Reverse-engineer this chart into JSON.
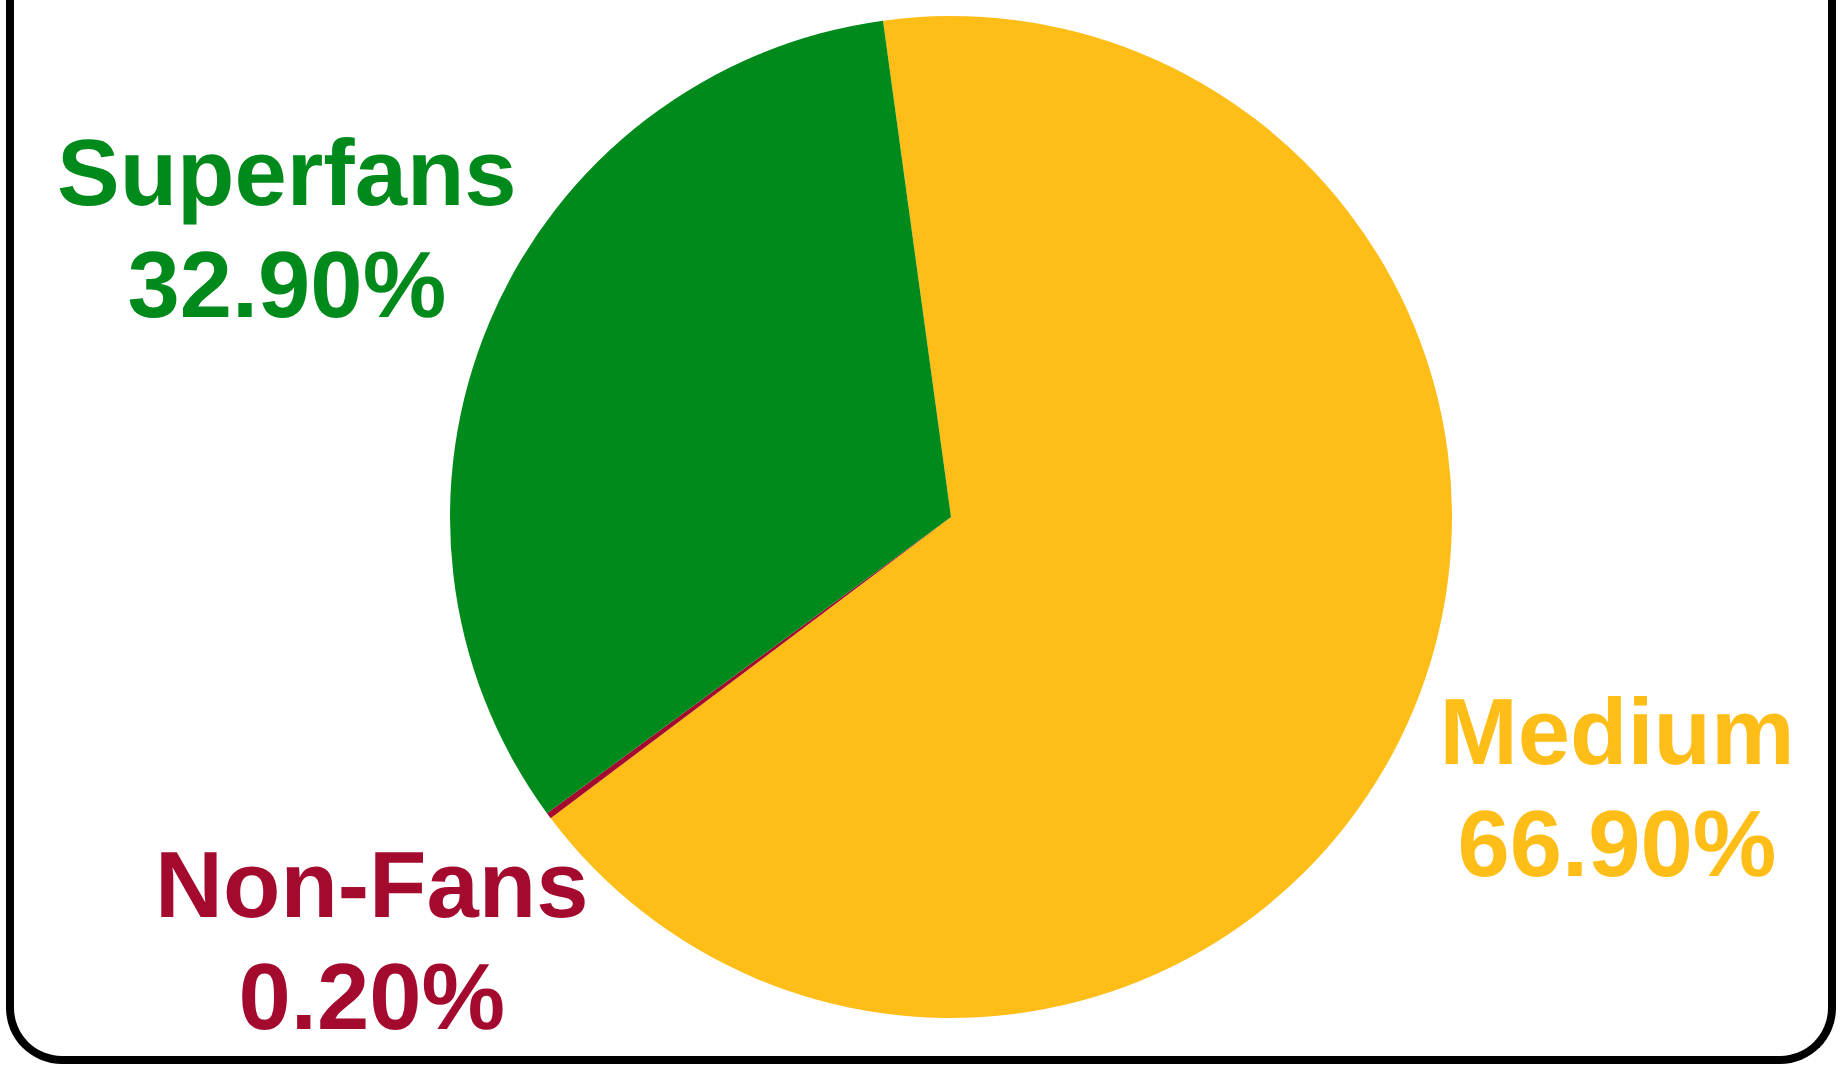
{
  "chart_data": {
    "type": "pie",
    "categories": [
      "Medium",
      "Non-Fans",
      "Superfans"
    ],
    "values": [
      66.9,
      0.2,
      32.9
    ],
    "colors": [
      "#febd17",
      "#a30a2e",
      "#008a1b"
    ],
    "value_labels": [
      "66.90%",
      "0.20%",
      "32.90%"
    ]
  }
}
